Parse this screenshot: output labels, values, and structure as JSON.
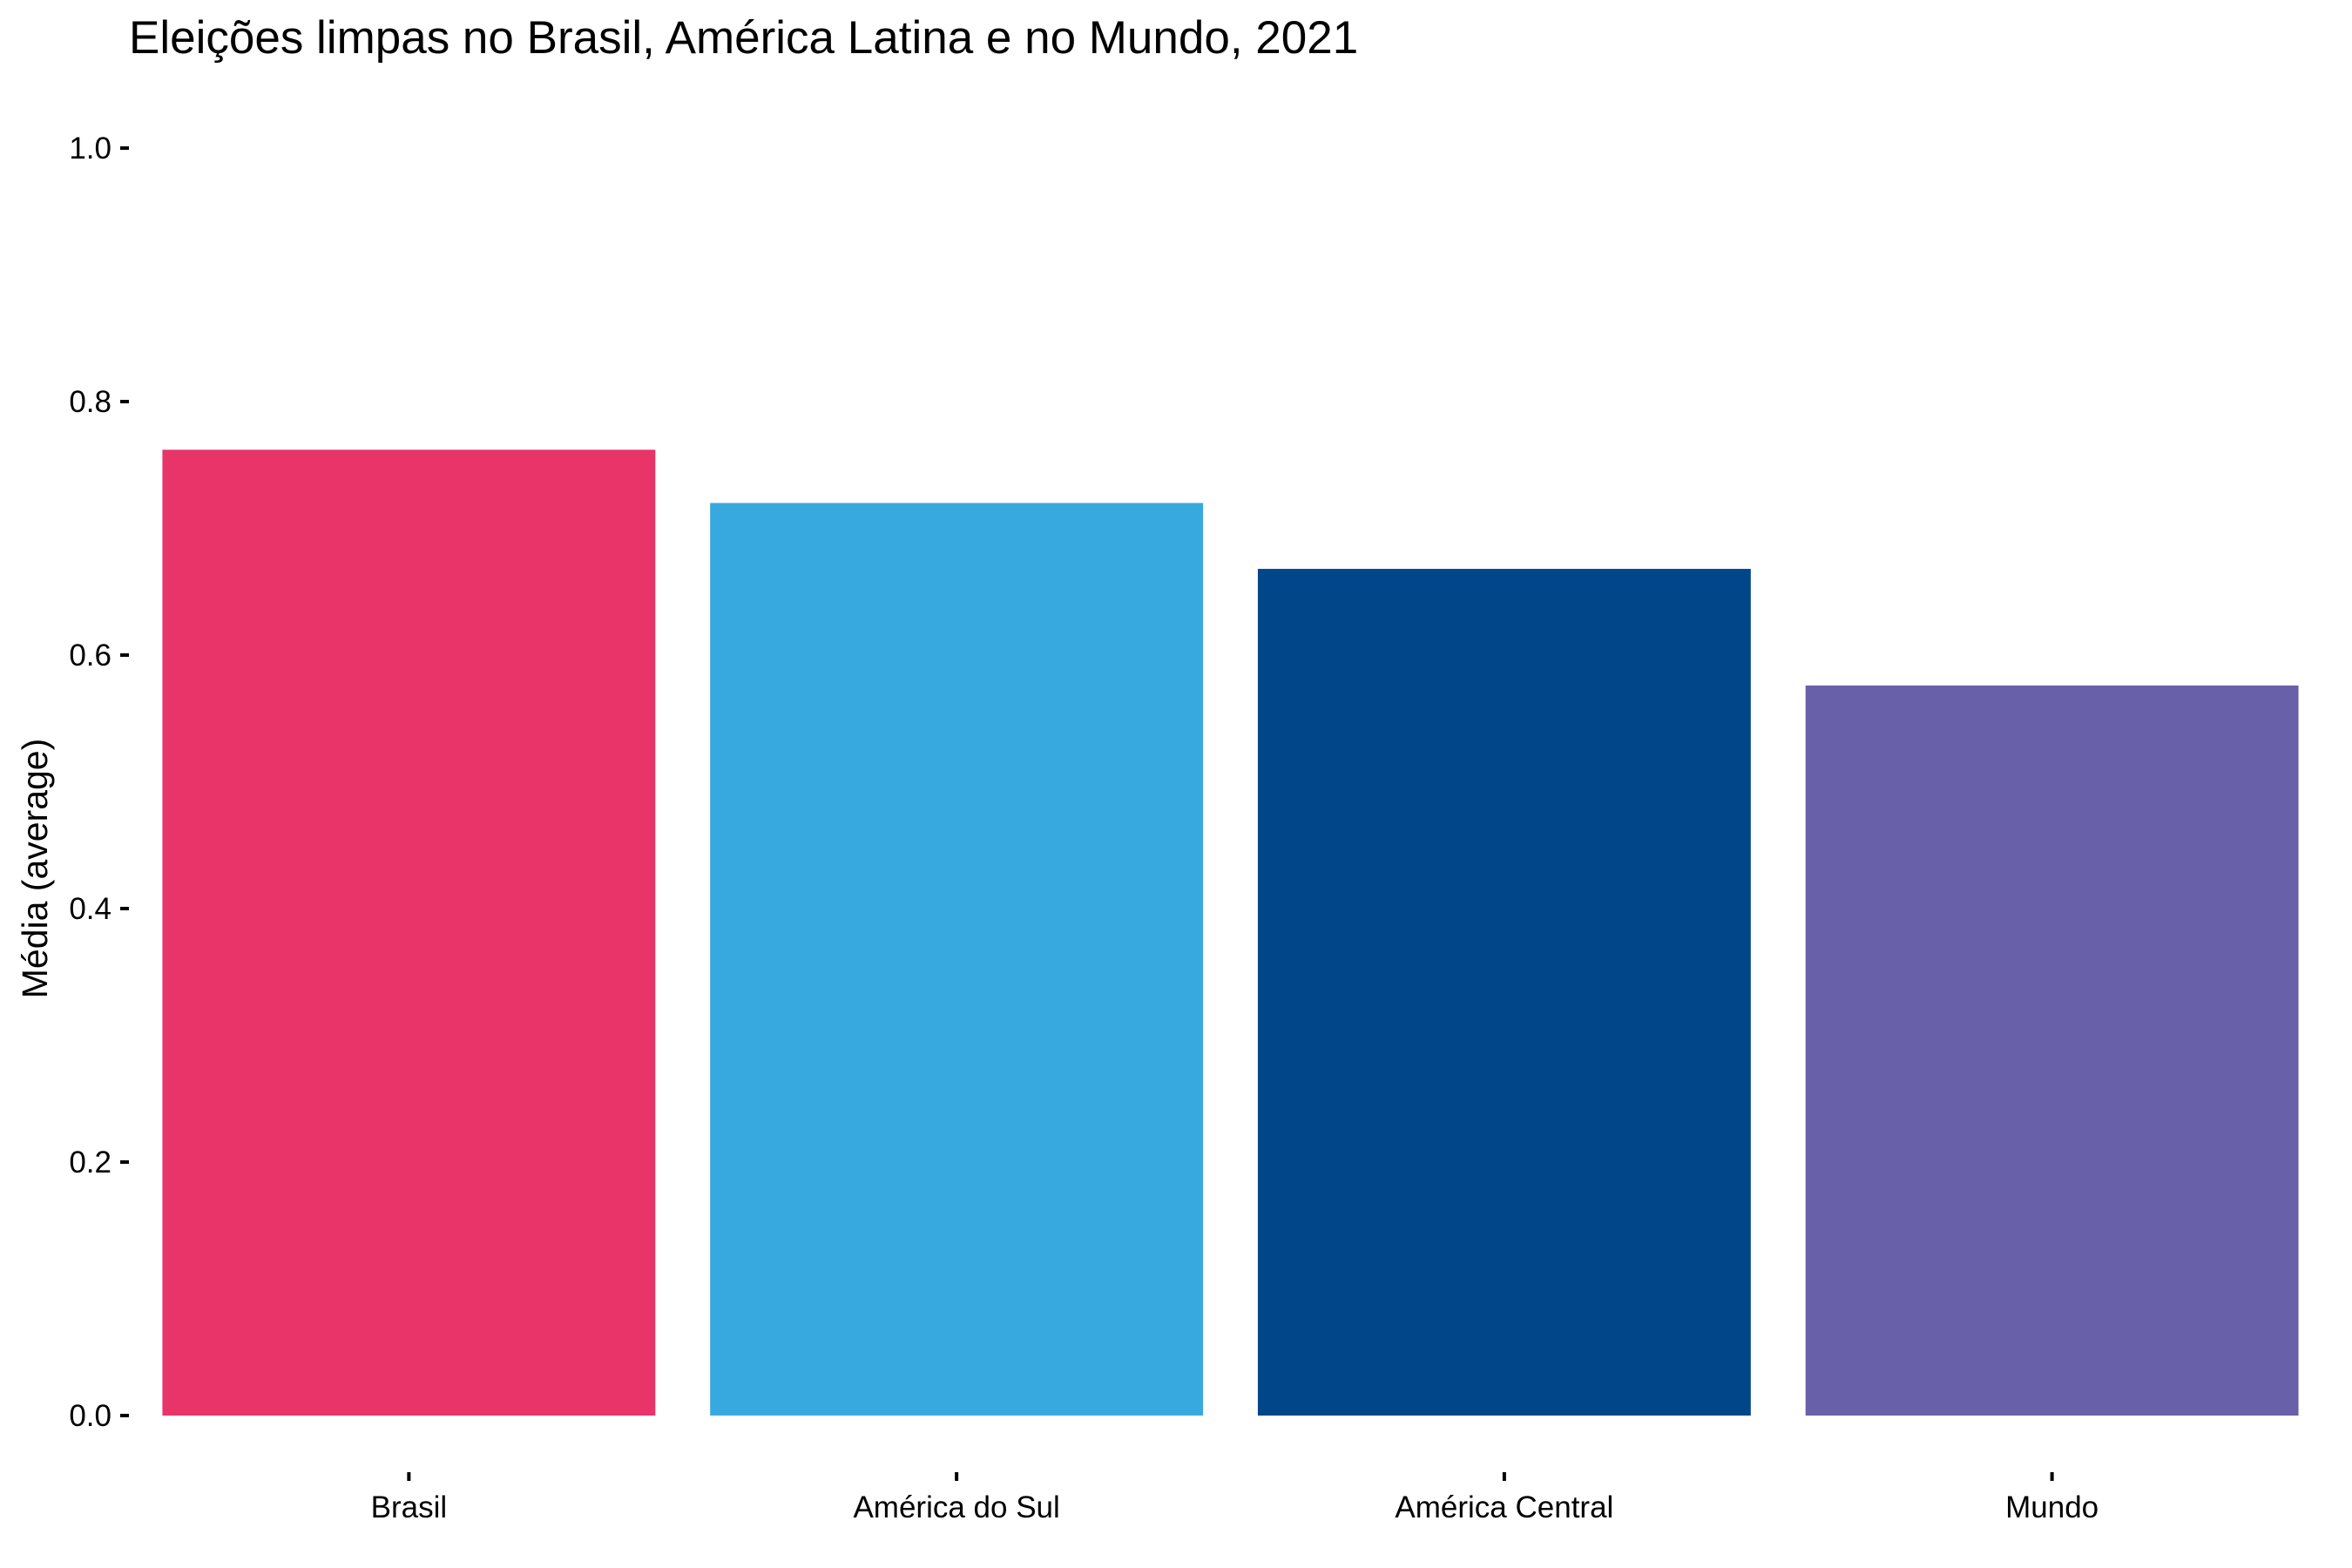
{
  "chart_data": {
    "type": "bar",
    "title": "Eleições limpas no Brasil, América Latina e no Mundo, 2021",
    "xlabel": "",
    "ylabel": "Média (average)",
    "categories": [
      "Brasil",
      "América do Sul",
      "América Central",
      "Mundo"
    ],
    "values": [
      0.762,
      0.72,
      0.668,
      0.576
    ],
    "colors": [
      "#E83468",
      "#38A9DF",
      "#02468A",
      "#6860A8"
    ],
    "ylim": [
      0,
      1
    ],
    "yticks": [
      {
        "value": 0.0,
        "label": "0.0"
      },
      {
        "value": 0.2,
        "label": "0.2"
      },
      {
        "value": 0.4,
        "label": "0.4"
      },
      {
        "value": 0.6,
        "label": "0.6"
      },
      {
        "value": 0.8,
        "label": "0.8"
      },
      {
        "value": 1.0,
        "label": "1.0"
      }
    ],
    "grid": false,
    "legend": "none"
  }
}
